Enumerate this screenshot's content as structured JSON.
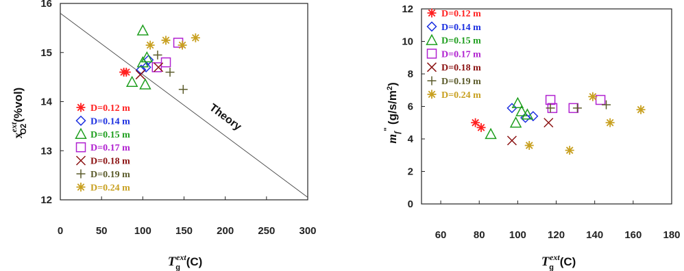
{
  "chart_data": [
    {
      "type": "scatter",
      "title": "",
      "xlabel": "T_g^ext (C)",
      "ylabel": "x_O2^ext (%vol)",
      "xlim": [
        0,
        300
      ],
      "ylim": [
        12,
        16
      ],
      "xticks": [
        "0",
        "50",
        "100",
        "150",
        "200",
        "250",
        "300"
      ],
      "yticks": [
        "12",
        "13",
        "14",
        "15",
        "16"
      ],
      "grid": false,
      "legend_position": "bottom-left",
      "annotation": "Theory",
      "theory_line": {
        "x": [
          0,
          300
        ],
        "y": [
          15.8,
          12.05
        ]
      },
      "series": [
        {
          "name": "D=0.12 m",
          "marker": "asterisk",
          "color": "#ff2020",
          "points": [
            [
              77,
              14.6
            ],
            [
              80,
              14.6
            ]
          ]
        },
        {
          "name": "D=0.14 m",
          "marker": "diamond",
          "color": "#1a2ee0",
          "points": [
            [
              98,
              14.65
            ],
            [
              104,
              14.7
            ],
            [
              107,
              14.85
            ]
          ]
        },
        {
          "name": "D=0.15 m",
          "marker": "triangle",
          "color": "#1e9e1e",
          "points": [
            [
              87,
              14.4
            ],
            [
              100,
              15.45
            ],
            [
              103,
              14.35
            ],
            [
              105,
              14.9
            ],
            [
              100,
              14.8
            ]
          ]
        },
        {
          "name": "D=0.17 m",
          "marker": "square",
          "color": "#b020d0",
          "points": [
            [
              117,
              14.7
            ],
            [
              128,
              14.8
            ],
            [
              143,
              15.2
            ]
          ]
        },
        {
          "name": "D=0.18 m",
          "marker": "x",
          "color": "#8a1010",
          "points": [
            [
              97,
              14.55
            ],
            [
              119,
              14.7
            ]
          ]
        },
        {
          "name": "D=0.19 m",
          "marker": "plus",
          "color": "#5a5a2a",
          "points": [
            [
              118,
              14.95
            ],
            [
              133,
              14.6
            ],
            [
              149,
              14.25
            ]
          ]
        },
        {
          "name": "D=0.24 m",
          "marker": "asterisk",
          "color": "#c8a020",
          "points": [
            [
              109,
              15.15
            ],
            [
              128,
              15.25
            ],
            [
              148,
              15.15
            ],
            [
              164,
              15.3
            ]
          ]
        }
      ]
    },
    {
      "type": "scatter",
      "title": "",
      "xlabel": "T_g^ext (C)",
      "ylabel": "m_f'' (g/s/m2)",
      "xlim": [
        50,
        180
      ],
      "ylim": [
        0,
        12
      ],
      "xticks": [
        "60",
        "80",
        "100",
        "120",
        "140",
        "160",
        "180"
      ],
      "yticks": [
        "0",
        "2",
        "4",
        "6",
        "8",
        "10",
        "12"
      ],
      "grid": false,
      "legend_position": "top-left",
      "series": [
        {
          "name": "D=0.12 m",
          "marker": "asterisk",
          "color": "#ff2020",
          "points": [
            [
              78,
              5.0
            ],
            [
              81,
              4.7
            ]
          ]
        },
        {
          "name": "D=0.14 m",
          "marker": "diamond",
          "color": "#1a2ee0",
          "points": [
            [
              97,
              5.9
            ],
            [
              104,
              5.3
            ],
            [
              108,
              5.4
            ]
          ]
        },
        {
          "name": "D=0.15 m",
          "marker": "triangle",
          "color": "#1e9e1e",
          "points": [
            [
              86,
              4.3
            ],
            [
              99,
              5.0
            ],
            [
              100,
              6.2
            ],
            [
              102,
              5.7
            ],
            [
              105,
              5.5
            ]
          ]
        },
        {
          "name": "D=0.17 m",
          "marker": "square",
          "color": "#b020d0",
          "points": [
            [
              117,
              6.4
            ],
            [
              118,
              5.9
            ],
            [
              129,
              5.9
            ],
            [
              143,
              6.4
            ]
          ]
        },
        {
          "name": "D=0.18 m",
          "marker": "x",
          "color": "#8a1010",
          "points": [
            [
              97,
              3.9
            ],
            [
              116,
              5.0
            ]
          ]
        },
        {
          "name": "D=0.19 m",
          "marker": "plus",
          "color": "#5a5a2a",
          "points": [
            [
              117,
              5.9
            ],
            [
              131,
              5.9
            ],
            [
              146,
              6.1
            ]
          ]
        },
        {
          "name": "D=0.24 m",
          "marker": "asterisk",
          "color": "#c8a020",
          "points": [
            [
              106,
              3.6
            ],
            [
              127,
              3.3
            ],
            [
              139,
              6.6
            ],
            [
              148,
              5.0
            ],
            [
              164,
              5.8
            ]
          ]
        }
      ]
    }
  ]
}
